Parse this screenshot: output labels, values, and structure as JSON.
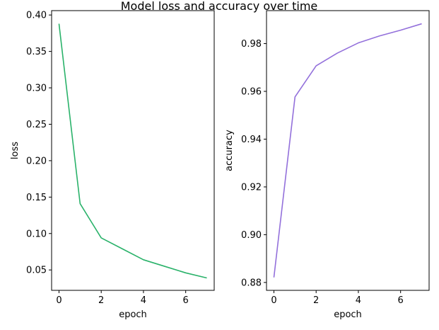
{
  "figure": {
    "title": "Model loss and accuracy over time"
  },
  "chart_data": [
    {
      "type": "line",
      "xlabel": "epoch",
      "ylabel": "loss",
      "xlim": [
        -0.35,
        7.35
      ],
      "ylim": [
        0.022,
        0.406
      ],
      "xticks": [
        0,
        2,
        4,
        6
      ],
      "xtick_labels": [
        "0",
        "2",
        "4",
        "6"
      ],
      "yticks": [
        0.05,
        0.1,
        0.15,
        0.2,
        0.25,
        0.3,
        0.35,
        0.4
      ],
      "ytick_labels": [
        "0.05",
        "0.10",
        "0.15",
        "0.20",
        "0.25",
        "0.30",
        "0.35",
        "0.40"
      ],
      "grid": false,
      "series": [
        {
          "color": "#2ab26a",
          "x": [
            0,
            1,
            2,
            3,
            4,
            5,
            6,
            7
          ],
          "y": [
            0.388,
            0.141,
            0.094,
            0.079,
            0.064,
            0.055,
            0.046,
            0.039
          ]
        }
      ]
    },
    {
      "type": "line",
      "xlabel": "epoch",
      "ylabel": "accuracy",
      "xlim": [
        -0.35,
        7.35
      ],
      "ylim": [
        0.8767,
        0.9938
      ],
      "xticks": [
        0,
        2,
        4,
        6
      ],
      "xtick_labels": [
        "0",
        "2",
        "4",
        "6"
      ],
      "yticks": [
        0.88,
        0.9,
        0.92,
        0.94,
        0.96,
        0.98
      ],
      "ytick_labels": [
        "0.88",
        "0.90",
        "0.92",
        "0.94",
        "0.96",
        "0.98"
      ],
      "grid": false,
      "series": [
        {
          "color": "#9370db",
          "x": [
            0,
            1,
            2,
            3,
            4,
            5,
            6,
            7
          ],
          "y": [
            0.8821,
            0.9577,
            0.9707,
            0.976,
            0.9803,
            0.9832,
            0.9856,
            0.9883
          ]
        }
      ]
    }
  ]
}
